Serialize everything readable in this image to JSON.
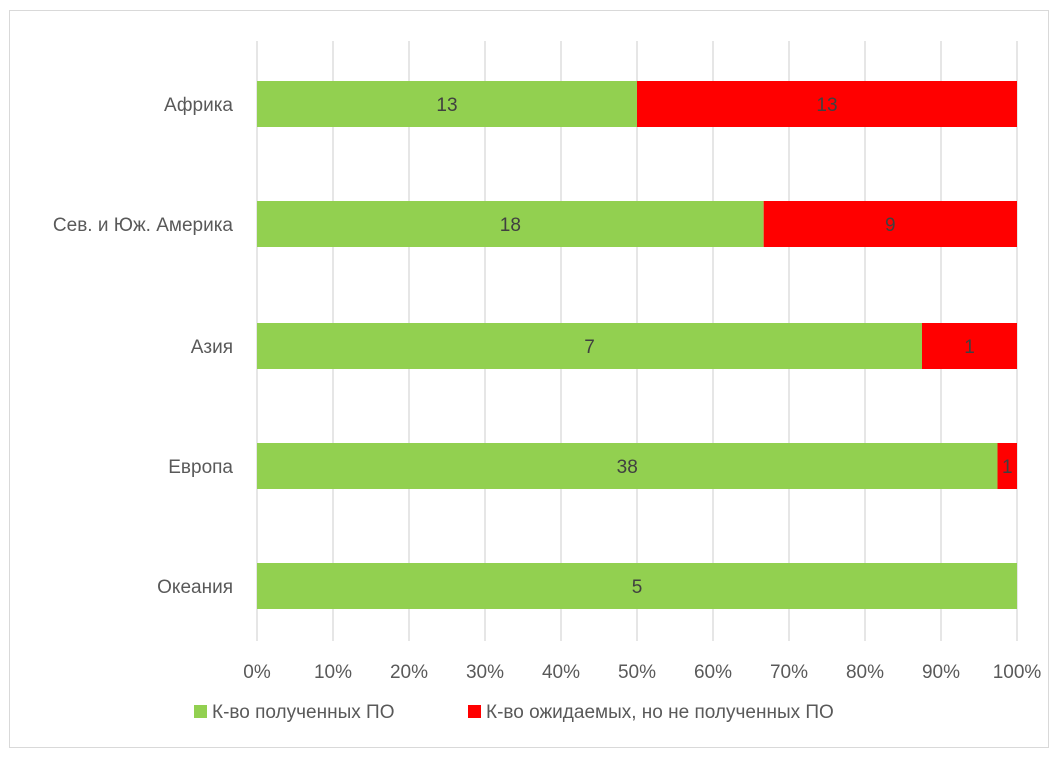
{
  "chart_data": {
    "type": "bar",
    "orientation": "horizontal",
    "stacked": "100%",
    "categories": [
      "Африка",
      "Сев. и Юж. Америка",
      "Азия",
      "Европа",
      "Океания"
    ],
    "series": [
      {
        "name": "К-во полученных ПО",
        "color": "#92d050",
        "values": [
          13,
          18,
          7,
          38,
          5
        ]
      },
      {
        "name": "К-во ожидаемых, но не полученных ПО",
        "color": "#ff0000",
        "values": [
          13,
          9,
          1,
          1,
          0
        ]
      }
    ],
    "x_ticks": [
      "0%",
      "10%",
      "20%",
      "30%",
      "40%",
      "50%",
      "60%",
      "70%",
      "80%",
      "90%",
      "100%"
    ],
    "xlim": [
      0,
      100
    ],
    "grid": "vertical",
    "legend_position": "bottom",
    "title": "",
    "xlabel": "",
    "ylabel": ""
  }
}
